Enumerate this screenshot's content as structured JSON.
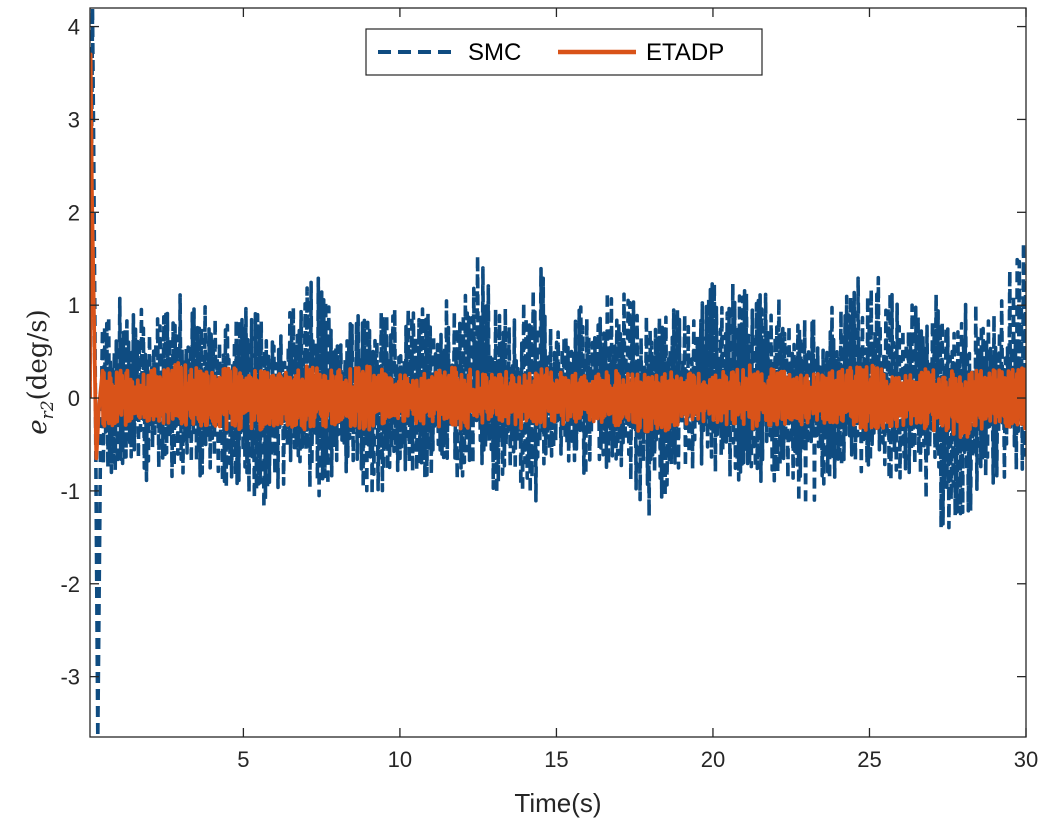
{
  "chart_data": {
    "type": "line",
    "title": "",
    "xlabel": "Time(s)",
    "ylabel": {
      "base": "e",
      "subscript": "r2",
      "units": "(deg/s)"
    },
    "xlim": [
      0.1,
      30
    ],
    "ylim": [
      -3.65,
      4.2
    ],
    "xticks": [
      5,
      10,
      15,
      20,
      25,
      30
    ],
    "xtick_labels": [
      "5",
      "10",
      "15",
      "20",
      "25",
      "30"
    ],
    "yticks": [
      -3,
      -2,
      -1,
      0,
      1,
      2,
      3,
      4
    ],
    "ytick_labels": [
      "-3",
      "-2",
      "-1",
      "0",
      "1",
      "2",
      "3",
      "4"
    ],
    "grid": false,
    "legend_position": "top-center",
    "series": [
      {
        "name": "SMC",
        "style": "dashed",
        "color": "#0F4C81",
        "initial_transient": {
          "peak_value": 4.2,
          "peak_time": 0.18,
          "trough_value": -3.65,
          "trough_time": 0.35
        },
        "envelope_t": [
          0.5,
          1,
          2,
          3,
          4,
          5,
          6,
          7,
          7.5,
          8,
          9,
          9.5,
          10,
          11,
          12,
          12.5,
          13,
          14,
          14.5,
          15,
          16,
          17,
          18,
          18.5,
          19,
          20,
          21,
          22,
          23,
          24,
          25,
          25.5,
          26,
          27,
          27.5,
          28,
          29,
          30
        ],
        "envelope_upper": [
          1.0,
          1.1,
          1.0,
          1.35,
          0.9,
          1.0,
          0.8,
          1.2,
          1.45,
          0.8,
          1.05,
          0.9,
          1.0,
          1.0,
          1.3,
          1.65,
          1.0,
          1.05,
          1.45,
          0.8,
          1.1,
          1.2,
          0.9,
          1.1,
          1.0,
          1.25,
          1.3,
          1.1,
          0.85,
          1.1,
          1.5,
          1.3,
          0.95,
          1.2,
          1.1,
          1.1,
          0.9,
          1.9
        ],
        "envelope_lower": [
          -1.0,
          -0.8,
          -0.9,
          -0.85,
          -0.9,
          -1.35,
          -1.1,
          -1.0,
          -1.1,
          -0.75,
          -1.1,
          -1.05,
          -0.8,
          -0.9,
          -0.95,
          -0.7,
          -1.1,
          -1.0,
          -1.2,
          -0.6,
          -0.9,
          -0.7,
          -1.35,
          -1.1,
          -0.8,
          -0.8,
          -0.9,
          -0.9,
          -1.2,
          -0.85,
          -0.8,
          -0.9,
          -0.9,
          -1.3,
          -1.5,
          -1.4,
          -0.9,
          -1.1
        ]
      },
      {
        "name": "ETADP",
        "style": "solid",
        "color": "#D95319",
        "initial_transient": {
          "peak_value": 3.7,
          "peak_time": 0.12,
          "trough_value": -0.65,
          "trough_time": 0.3
        },
        "envelope_t": [
          0.5,
          1,
          2,
          3,
          4,
          5,
          6,
          7,
          8,
          9,
          10,
          11,
          12,
          13,
          14,
          15,
          16,
          17,
          18,
          19,
          20,
          21,
          22,
          23,
          24,
          25,
          26,
          27,
          28,
          29,
          30
        ],
        "envelope_upper": [
          0.35,
          0.3,
          0.3,
          0.4,
          0.3,
          0.35,
          0.25,
          0.35,
          0.3,
          0.35,
          0.25,
          0.3,
          0.35,
          0.25,
          0.35,
          0.3,
          0.25,
          0.3,
          0.25,
          0.3,
          0.25,
          0.4,
          0.3,
          0.25,
          0.3,
          0.4,
          0.25,
          0.35,
          0.3,
          0.3,
          0.35
        ],
        "envelope_lower": [
          -0.35,
          -0.3,
          -0.3,
          -0.3,
          -0.3,
          -0.4,
          -0.3,
          -0.35,
          -0.3,
          -0.35,
          -0.25,
          -0.3,
          -0.35,
          -0.25,
          -0.35,
          -0.3,
          -0.25,
          -0.3,
          -0.4,
          -0.3,
          -0.25,
          -0.35,
          -0.3,
          -0.3,
          -0.3,
          -0.35,
          -0.3,
          -0.35,
          -0.45,
          -0.3,
          -0.35
        ]
      }
    ]
  }
}
